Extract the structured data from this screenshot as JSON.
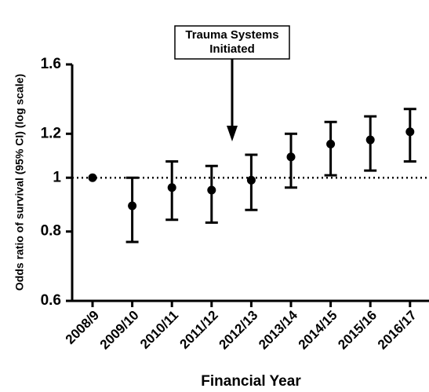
{
  "chart_data": {
    "type": "errorbar",
    "x_label": "Financial Year",
    "y_label": "Odds ratio of survival (95% CI)  (log scale)",
    "annotation_lines": [
      "Trauma Systems",
      "Initiated"
    ],
    "categories": [
      "2008/9",
      "2009/10",
      "2010/11",
      "2011/12",
      "2012/13",
      "2013/14",
      "2014/15",
      "2015/16",
      "2016/17"
    ],
    "series": [
      {
        "color": "#000000",
        "values": [
          1.0,
          0.89,
          0.96,
          0.95,
          0.99,
          1.09,
          1.15,
          1.17,
          1.21
        ],
        "lower": [
          null,
          0.766,
          0.84,
          0.83,
          0.875,
          0.96,
          1.01,
          1.03,
          1.07
        ],
        "upper": [
          null,
          1.0,
          1.07,
          1.05,
          1.1,
          1.2,
          1.26,
          1.29,
          1.33
        ]
      }
    ],
    "ylim": [
      0.6,
      1.6
    ],
    "yticks": [
      0.6,
      0.8,
      1.0,
      1.2,
      1.6
    ],
    "log_scale": true,
    "reference_line": 1.0
  }
}
